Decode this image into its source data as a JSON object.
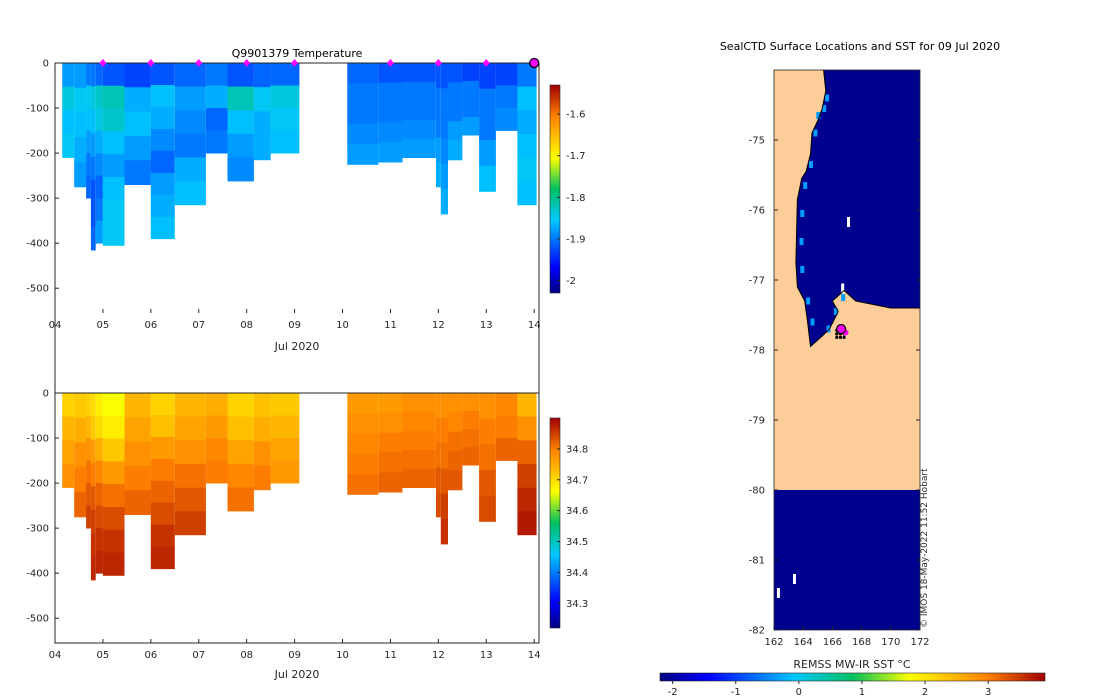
{
  "chart_data": [
    {
      "id": "temperature",
      "type": "heatmap",
      "title": "Q9901379  Temperature",
      "xlabel": "Jul 2020",
      "ylabel": "",
      "xlim": [
        4,
        14.1
      ],
      "ylim": [
        -555,
        0
      ],
      "xticks": [
        4,
        5,
        6,
        7,
        8,
        9,
        10,
        11,
        12,
        13,
        14
      ],
      "xtick_labels": [
        "04",
        "05",
        "06",
        "07",
        "08",
        "09",
        "10",
        "11",
        "12",
        "13",
        "14"
      ],
      "yticks": [
        0,
        -100,
        -200,
        -300,
        -400,
        -500
      ],
      "ytick_labels": [
        "0",
        "-100",
        "-200",
        "-300",
        "-400",
        "-500"
      ],
      "colorbar": {
        "min": -2.03,
        "max": -1.53,
        "ticks": [
          -1.6,
          -1.7,
          -1.8,
          -1.9,
          -2.0
        ],
        "tick_labels": [
          "-1.6",
          "-1.7",
          "-1.8",
          "-1.9",
          "-2"
        ]
      },
      "markers": {
        "x": [
          5,
          6,
          7,
          8,
          9,
          11,
          12,
          13
        ],
        "latest_x": 14,
        "color": "#ff00ff"
      },
      "profiles": [
        {
          "x0": 4.15,
          "x1": 4.4,
          "bottom": -210,
          "values": [
            -1.88,
            -1.84,
            -1.86,
            -1.85
          ]
        },
        {
          "x0": 4.4,
          "x1": 4.65,
          "bottom": -275,
          "values": [
            -1.88,
            -1.85,
            -1.86,
            -1.87,
            -1.88
          ]
        },
        {
          "x0": 4.65,
          "x1": 4.75,
          "bottom": -300,
          "values": [
            -1.9,
            -1.85,
            -1.86,
            -1.88,
            -1.9,
            -1.91
          ]
        },
        {
          "x0": 4.75,
          "x1": 4.85,
          "bottom": -415,
          "values": [
            -1.9,
            -1.84,
            -1.86,
            -1.88,
            -1.9,
            -1.92,
            -1.92,
            -1.91
          ]
        },
        {
          "x0": 4.85,
          "x1": 5.0,
          "bottom": -400,
          "values": [
            -1.91,
            -1.83,
            -1.84,
            -1.87,
            -1.89,
            -1.91,
            -1.9,
            -1.88
          ]
        },
        {
          "x0": 5.0,
          "x1": 5.45,
          "bottom": -405,
          "values": [
            -1.92,
            -1.82,
            -1.83,
            -1.86,
            -1.88,
            -1.86,
            -1.85,
            -1.85
          ]
        },
        {
          "x0": 5.45,
          "x1": 6.0,
          "bottom": -270,
          "values": [
            -1.93,
            -1.87,
            -1.86,
            -1.88,
            -1.9
          ]
        },
        {
          "x0": 6.0,
          "x1": 6.5,
          "bottom": -390,
          "values": [
            -1.92,
            -1.86,
            -1.87,
            -1.89,
            -1.91,
            -1.88,
            -1.87,
            -1.86
          ]
        },
        {
          "x0": 6.5,
          "x1": 7.15,
          "bottom": -315,
          "values": [
            -1.91,
            -1.88,
            -1.89,
            -1.9,
            -1.87,
            -1.86
          ]
        },
        {
          "x0": 7.15,
          "x1": 7.6,
          "bottom": -200,
          "values": [
            -1.9,
            -1.87,
            -1.91,
            -1.9
          ]
        },
        {
          "x0": 7.6,
          "x1": 8.15,
          "bottom": -262,
          "values": [
            -1.92,
            -1.82,
            -1.86,
            -1.88,
            -1.89
          ]
        },
        {
          "x0": 8.15,
          "x1": 8.5,
          "bottom": -215,
          "values": [
            -1.91,
            -1.85,
            -1.87,
            -1.87
          ]
        },
        {
          "x0": 8.5,
          "x1": 9.1,
          "bottom": -200,
          "values": [
            -1.91,
            -1.84,
            -1.85,
            -1.86
          ]
        },
        {
          "x0": 10.1,
          "x1": 10.75,
          "bottom": -225,
          "values": [
            -1.91,
            -1.9,
            -1.9,
            -1.89,
            -1.88
          ]
        },
        {
          "x0": 10.75,
          "x1": 11.25,
          "bottom": -220,
          "values": [
            -1.92,
            -1.9,
            -1.9,
            -1.89,
            -1.88
          ]
        },
        {
          "x0": 11.25,
          "x1": 11.95,
          "bottom": -210,
          "values": [
            -1.92,
            -1.9,
            -1.9,
            -1.89,
            -1.88
          ]
        },
        {
          "x0": 11.95,
          "x1": 12.05,
          "bottom": -275,
          "values": [
            -1.92,
            -1.9,
            -1.9,
            -1.88,
            -1.87
          ]
        },
        {
          "x0": 12.05,
          "x1": 12.2,
          "bottom": -335,
          "values": [
            -1.92,
            -1.9,
            -1.9,
            -1.89,
            -1.88,
            -1.87
          ]
        },
        {
          "x0": 12.2,
          "x1": 12.5,
          "bottom": -215,
          "values": [
            -1.92,
            -1.9,
            -1.9,
            -1.88,
            -1.87
          ]
        },
        {
          "x0": 12.5,
          "x1": 12.85,
          "bottom": -160,
          "values": [
            -1.93,
            -1.9,
            -1.9,
            -1.88
          ]
        },
        {
          "x0": 12.85,
          "x1": 13.2,
          "bottom": -285,
          "values": [
            -1.93,
            -1.9,
            -1.9,
            -1.88,
            -1.86
          ]
        },
        {
          "x0": 13.2,
          "x1": 13.65,
          "bottom": -150,
          "values": [
            -1.93,
            -1.9,
            -1.89
          ]
        },
        {
          "x0": 13.65,
          "x1": 14.05,
          "bottom": -315,
          "values": [
            -1.9,
            -1.86,
            -1.87,
            -1.86,
            -1.85,
            -1.86
          ]
        }
      ]
    },
    {
      "id": "salinity",
      "type": "heatmap",
      "title": "",
      "xlabel": "Jul 2020",
      "ylabel": "",
      "xlim": [
        4,
        14.1
      ],
      "ylim": [
        -555,
        0
      ],
      "xticks": [
        4,
        5,
        6,
        7,
        8,
        9,
        10,
        11,
        12,
        13,
        14
      ],
      "xtick_labels": [
        "04",
        "05",
        "06",
        "07",
        "08",
        "09",
        "10",
        "11",
        "12",
        "13",
        "14"
      ],
      "yticks": [
        0,
        -100,
        -200,
        -300,
        -400,
        -500
      ],
      "ytick_labels": [
        "0",
        "-100",
        "-200",
        "-300",
        "-400",
        "-500"
      ],
      "colorbar": {
        "min": 34.22,
        "max": 34.9,
        "ticks": [
          34.8,
          34.7,
          34.6,
          34.5,
          34.4,
          34.3
        ],
        "tick_labels": [
          "34.8",
          "34.7",
          "34.6",
          "34.5",
          "34.4",
          "34.3"
        ]
      },
      "profiles": [
        {
          "x0": 4.15,
          "x1": 4.4,
          "bottom": -210,
          "values": [
            34.71,
            34.74,
            34.76,
            34.78
          ]
        },
        {
          "x0": 4.4,
          "x1": 4.65,
          "bottom": -275,
          "values": [
            34.72,
            34.75,
            34.78,
            34.8,
            34.82
          ]
        },
        {
          "x0": 4.65,
          "x1": 4.75,
          "bottom": -300,
          "values": [
            34.71,
            34.74,
            34.78,
            34.81,
            34.83,
            34.85
          ]
        },
        {
          "x0": 4.75,
          "x1": 4.85,
          "bottom": -415,
          "values": [
            34.7,
            34.72,
            34.77,
            34.8,
            34.83,
            34.85,
            34.86,
            34.87
          ]
        },
        {
          "x0": 4.85,
          "x1": 5.0,
          "bottom": -400,
          "values": [
            34.68,
            34.7,
            34.75,
            34.79,
            34.82,
            34.84,
            34.86,
            34.87
          ]
        },
        {
          "x0": 5.0,
          "x1": 5.45,
          "bottom": -405,
          "values": [
            34.66,
            34.68,
            34.72,
            34.77,
            34.81,
            34.84,
            34.86,
            34.87
          ]
        },
        {
          "x0": 5.45,
          "x1": 6.0,
          "bottom": -270,
          "values": [
            34.74,
            34.76,
            34.78,
            34.8,
            34.82
          ]
        },
        {
          "x0": 6.0,
          "x1": 6.5,
          "bottom": -390,
          "values": [
            34.71,
            34.73,
            34.77,
            34.8,
            34.82,
            34.84,
            34.86,
            34.87
          ]
        },
        {
          "x0": 6.5,
          "x1": 7.15,
          "bottom": -315,
          "values": [
            34.74,
            34.76,
            34.78,
            34.81,
            34.83,
            34.85
          ]
        },
        {
          "x0": 7.15,
          "x1": 7.6,
          "bottom": -200,
          "values": [
            34.75,
            34.77,
            34.79,
            34.8
          ]
        },
        {
          "x0": 7.6,
          "x1": 8.15,
          "bottom": -262,
          "values": [
            34.71,
            34.73,
            34.76,
            34.79,
            34.81
          ]
        },
        {
          "x0": 8.15,
          "x1": 8.5,
          "bottom": -215,
          "values": [
            34.73,
            34.75,
            34.78,
            34.8
          ]
        },
        {
          "x0": 8.5,
          "x1": 9.1,
          "bottom": -200,
          "values": [
            34.72,
            34.74,
            34.76,
            34.77
          ]
        },
        {
          "x0": 10.1,
          "x1": 10.75,
          "bottom": -225,
          "values": [
            34.77,
            34.78,
            34.79,
            34.8,
            34.81
          ]
        },
        {
          "x0": 10.75,
          "x1": 11.25,
          "bottom": -220,
          "values": [
            34.77,
            34.78,
            34.8,
            34.81,
            34.82
          ]
        },
        {
          "x0": 11.25,
          "x1": 11.95,
          "bottom": -210,
          "values": [
            34.78,
            34.79,
            34.8,
            34.81,
            34.82
          ]
        },
        {
          "x0": 11.95,
          "x1": 12.05,
          "bottom": -275,
          "values": [
            34.78,
            34.8,
            34.81,
            34.83,
            34.84
          ]
        },
        {
          "x0": 12.05,
          "x1": 12.2,
          "bottom": -335,
          "values": [
            34.78,
            34.8,
            34.81,
            34.83,
            34.85,
            34.86
          ]
        },
        {
          "x0": 12.2,
          "x1": 12.5,
          "bottom": -215,
          "values": [
            34.78,
            34.79,
            34.81,
            34.82,
            34.83
          ]
        },
        {
          "x0": 12.5,
          "x1": 12.85,
          "bottom": -160,
          "values": [
            34.78,
            34.8,
            34.81,
            34.82
          ]
        },
        {
          "x0": 12.85,
          "x1": 13.2,
          "bottom": -285,
          "values": [
            34.78,
            34.8,
            34.81,
            34.83,
            34.84
          ]
        },
        {
          "x0": 13.2,
          "x1": 13.65,
          "bottom": -150,
          "values": [
            34.79,
            34.8,
            34.82
          ]
        },
        {
          "x0": 13.65,
          "x1": 14.05,
          "bottom": -315,
          "values": [
            34.74,
            34.78,
            34.82,
            34.85,
            34.87,
            34.88
          ]
        }
      ]
    },
    {
      "id": "sst_map",
      "type": "heatmap",
      "title": "SealCTD Surface Locations and SST for 09 Jul 2020",
      "xlim": [
        162,
        172
      ],
      "ylim": [
        -82,
        -74
      ],
      "xticks": [
        162,
        164,
        166,
        168,
        170,
        172
      ],
      "xtick_labels": [
        "162",
        "164",
        "166",
        "168",
        "170",
        "172"
      ],
      "yticks": [
        -75,
        -76,
        -77,
        -78,
        -79,
        -80,
        -81,
        -82
      ],
      "ytick_labels": [
        "-75",
        "-76",
        "-77",
        "-78",
        "-79",
        "-80",
        "-81",
        "-82"
      ],
      "colorbar": {
        "label": "REMSS MW-IR SST °C",
        "min": -2.2,
        "max": 3.9,
        "ticks": [
          -2,
          -1,
          0,
          1,
          2,
          3
        ],
        "tick_labels": [
          "-2",
          "-1",
          "0",
          "1",
          "2",
          "3"
        ]
      },
      "land_color": "#fccd98",
      "sea_color": "#00008f",
      "credit": "© IMOS 18-May-2022 11:52 Hobart",
      "coastline": [
        [
          165.4,
          -74.0
        ],
        [
          165.55,
          -74.3
        ],
        [
          165.3,
          -74.55
        ],
        [
          165.05,
          -74.7
        ],
        [
          164.6,
          -74.9
        ],
        [
          164.5,
          -75.2
        ],
        [
          164.2,
          -75.45
        ],
        [
          163.9,
          -75.55
        ],
        [
          163.6,
          -75.85
        ],
        [
          163.55,
          -76.3
        ],
        [
          163.5,
          -76.75
        ],
        [
          163.6,
          -77.1
        ],
        [
          164.1,
          -77.3
        ],
        [
          164.3,
          -77.6
        ],
        [
          164.5,
          -77.95
        ],
        [
          165.3,
          -77.8
        ],
        [
          165.8,
          -77.7
        ],
        [
          166.4,
          -77.45
        ],
        [
          166.0,
          -77.3
        ],
        [
          166.8,
          -77.15
        ],
        [
          167.6,
          -77.3
        ],
        [
          168.8,
          -77.35
        ],
        [
          170.0,
          -77.4
        ],
        [
          172.0,
          -77.4
        ]
      ],
      "ice_shelf_edge_lat": -80.0,
      "floats": [
        {
          "lon": 166.9,
          "lat": -77.75,
          "latest": false
        },
        {
          "lon": 166.6,
          "lat": -77.7,
          "latest": true
        }
      ]
    }
  ]
}
